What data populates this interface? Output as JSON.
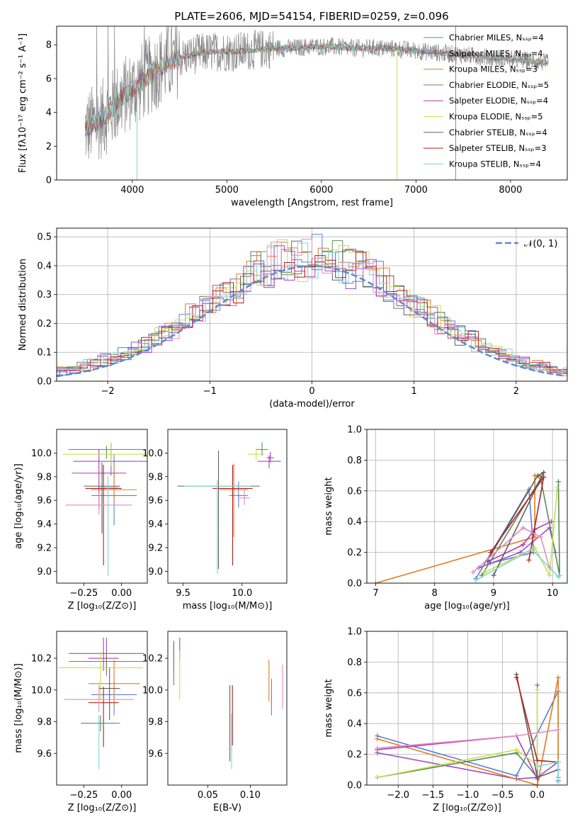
{
  "title": "PLATE=2606, MJD=54154, FIBERID=0259, z=0.096",
  "colors": [
    "#5b7fd4",
    "#9b4fc0",
    "#e07b22",
    "#5a8a5a",
    "#b03ab0",
    "#c7e04a",
    "#606060",
    "#b02020",
    "#7fd6d6",
    "#e68ac4",
    "#888888"
  ],
  "chart_data": [
    {
      "id": "spectrum",
      "type": "line",
      "xlabel": "wavelength [Angstrom, rest frame]",
      "ylabel": "Flux [fλ10⁻¹⁷ erg cm⁻² s⁻¹ A⁻¹]",
      "xlim": [
        3200,
        8600
      ],
      "ylim": [
        0,
        9.1
      ],
      "xticks": [
        4000,
        5000,
        6000,
        7000,
        8000
      ],
      "yticks": [
        0,
        2,
        4,
        6,
        8
      ],
      "grid": false,
      "legend_position": "right",
      "legend": [
        "Chabrier MILES, Nₛₛₚ=4",
        "Salpeter MILES, Nₛₛₚ=4",
        "Kroupa MILES, Nₛₛₚ=3",
        "Chabrier ELODIE, Nₛₛₚ=5",
        "Salpeter ELODIE, Nₛₛₚ=4",
        "Kroupa ELODIE, Nₛₛₚ=5",
        "Chabrier STELIB, Nₛₛₚ=4",
        "Salpeter STELIB, Nₛₛₚ=3",
        "Kroupa STELIB, Nₛₛₚ=4"
      ],
      "continuum_x": [
        3500,
        3700,
        3900,
        4100,
        4300,
        4500,
        4700,
        4900,
        5100,
        5300,
        5500,
        5700,
        5900,
        6100,
        6300,
        6500,
        6700,
        6900,
        7100,
        7300,
        7500,
        7700,
        7900,
        8100,
        8300,
        8400
      ],
      "continuum_y": [
        3.0,
        3.7,
        4.9,
        5.8,
        6.7,
        7.2,
        7.5,
        7.6,
        7.6,
        7.7,
        7.8,
        7.8,
        7.9,
        7.9,
        7.8,
        7.8,
        7.8,
        7.7,
        7.6,
        7.5,
        7.4,
        7.3,
        7.2,
        7.1,
        7.0,
        6.9
      ]
    },
    {
      "id": "residuals",
      "type": "line",
      "xlabel": "(data-model)/error",
      "ylabel": "Normed distribution",
      "xlim": [
        -2.5,
        2.5
      ],
      "ylim": [
        0,
        0.53
      ],
      "xticks": [
        -2,
        -1,
        0,
        1,
        2
      ],
      "xtick_labels": [
        "−2",
        "−1",
        "0",
        "1",
        "2"
      ],
      "yticks": [
        0.0,
        0.1,
        0.2,
        0.3,
        0.4,
        0.5
      ],
      "ytick_labels": [
        "0.0",
        "0.1",
        "0.2",
        "0.3",
        "0.4",
        "0.5"
      ],
      "grid": true,
      "legend_position": "top-right",
      "legend": [
        "𝒩(0, 1)"
      ],
      "gaussian": {
        "mean": 0,
        "sigma": 1
      }
    },
    {
      "id": "age-vs-Z",
      "type": "scatter",
      "xlabel": "Z [log₁₀(Z/Z⊙)]",
      "ylabel": "age  [log₁₀(age/yr)]",
      "xlim": [
        -0.43,
        0.17
      ],
      "ylim": [
        8.9,
        10.2
      ],
      "xticks": [
        -0.25,
        0.0
      ],
      "xtick_labels": [
        "−0.25",
        "0.00"
      ],
      "yticks": [
        9.0,
        9.2,
        9.4,
        9.6,
        9.8,
        10.0
      ],
      "ytick_labels": [
        "9.0",
        "9.2",
        "9.4",
        "9.6",
        "9.8",
        "10.0"
      ],
      "points": [
        {
          "x": -0.05,
          "y": 9.64,
          "xerr": 0.15,
          "yerr": [
            0.25,
            0.35
          ],
          "c": 0
        },
        {
          "x": -0.07,
          "y": 9.93,
          "xerr": 0.25,
          "yerr": [
            0.12,
            0.15
          ],
          "c": 1
        },
        {
          "x": -0.05,
          "y": 9.69,
          "xerr": 0.15,
          "yerr": [
            0.1,
            0.2
          ],
          "c": 2
        },
        {
          "x": -0.1,
          "y": 10.03,
          "xerr": 0.25,
          "yerr": [
            0.08,
            0.03
          ],
          "c": 3
        },
        {
          "x": -0.15,
          "y": 9.83,
          "xerr": 0.18,
          "yerr": [
            0.3,
            0.2
          ],
          "c": 4
        },
        {
          "x": -0.07,
          "y": 9.99,
          "xerr": 0.32,
          "yerr": [
            0.1,
            0.1
          ],
          "c": 5
        },
        {
          "x": -0.13,
          "y": 9.72,
          "xerr": 0.12,
          "yerr": [
            0.4,
            0.2
          ],
          "c": 6
        },
        {
          "x": -0.12,
          "y": 9.7,
          "xerr": 0.12,
          "yerr": [
            0.65,
            0.2
          ],
          "c": 7
        },
        {
          "x": -0.09,
          "y": 9.71,
          "xerr": 0.07,
          "yerr": [
            0.75,
            0.1
          ],
          "c": 8
        },
        {
          "x": -0.15,
          "y": 9.56,
          "xerr": 0.22,
          "yerr": [
            0.08,
            0.1
          ],
          "c": 9
        }
      ]
    },
    {
      "id": "age-vs-mass",
      "type": "scatter",
      "xlabel": "mass [log₁₀(M/M⊙)]",
      "xlim": [
        9.37,
        10.38
      ],
      "ylim": [
        8.9,
        10.2
      ],
      "xticks": [
        9.5,
        10.0
      ],
      "xtick_labels": [
        "9.5",
        "10.0"
      ],
      "yticks": [
        9.0,
        9.2,
        9.4,
        9.6,
        9.8,
        10.0
      ],
      "ytick_labels": [
        "9.0",
        "9.2",
        "9.4",
        "9.6",
        "9.8",
        "10.0"
      ],
      "points": [
        {
          "x": 9.97,
          "y": 9.64,
          "xerr": 0.08,
          "yerr": [
            0.1,
            0.12
          ],
          "c": 0
        },
        {
          "x": 10.23,
          "y": 9.93,
          "xerr": 0.1,
          "yerr": [
            0.06,
            0.05
          ],
          "c": 1
        },
        {
          "x": 9.93,
          "y": 9.69,
          "xerr": 0.12,
          "yerr": [
            0.4,
            0.22
          ],
          "c": 2
        },
        {
          "x": 10.17,
          "y": 10.03,
          "xerr": 0.05,
          "yerr": [
            0.05,
            0.06
          ],
          "c": 3
        },
        {
          "x": 10.24,
          "y": 9.96,
          "xerr": 0.03,
          "yerr": [
            0.04,
            0.05
          ],
          "c": 4
        },
        {
          "x": 10.12,
          "y": 9.99,
          "xerr": 0.07,
          "yerr": [
            0.05,
            0.05
          ],
          "c": 5
        },
        {
          "x": 9.8,
          "y": 9.72,
          "xerr": 0.35,
          "yerr": [
            0.7,
            0.3
          ],
          "c": 6
        },
        {
          "x": 9.92,
          "y": 9.7,
          "xerr": 0.17,
          "yerr": [
            0.65,
            0.2
          ],
          "c": 7
        },
        {
          "x": 9.79,
          "y": 9.72,
          "xerr": 0.28,
          "yerr": [
            0.74,
            0.05
          ],
          "c": 8
        },
        {
          "x": 10.02,
          "y": 9.62,
          "xerr": 0.05,
          "yerr": [
            0.06,
            0.07
          ],
          "c": 9
        }
      ]
    },
    {
      "id": "weight-vs-age",
      "type": "line",
      "xlabel": "age  [log₁₀(age/yr)]",
      "ylabel": "mass weight",
      "xlim": [
        6.85,
        10.25
      ],
      "ylim": [
        0,
        1.0
      ],
      "xticks": [
        7,
        8,
        9,
        10
      ],
      "yticks": [
        0.0,
        0.2,
        0.4,
        0.6,
        0.8,
        1.0
      ],
      "ytick_labels": [
        "0.0",
        "0.2",
        "0.4",
        "0.6",
        "0.8",
        "1.0"
      ],
      "grid": true,
      "series": [
        {
          "c": 0,
          "x": [
            8.7,
            9.6,
            9.68,
            8.95
          ],
          "y": [
            0.03,
            0.61,
            0.2,
            0.13
          ]
        },
        {
          "c": 1,
          "x": [
            8.75,
            9.45,
            9.95,
            10.05
          ],
          "y": [
            0.1,
            0.2,
            0.36,
            0.2
          ]
        },
        {
          "c": 2,
          "x": [
            7.0,
            9.7,
            9.7,
            9.8
          ],
          "y": [
            0.0,
            0.3,
            0.7,
            0.69
          ]
        },
        {
          "c": 3,
          "x": [
            8.8,
            9.8,
            10.12,
            10.1
          ],
          "y": [
            0.05,
            0.68,
            0.05,
            0.66
          ]
        },
        {
          "c": 4,
          "x": [
            8.9,
            9.5,
            9.7,
            9.98
          ],
          "y": [
            0.14,
            0.25,
            0.35,
            0.4
          ]
        },
        {
          "c": 5,
          "x": [
            8.85,
            9.7,
            9.95,
            10.08
          ],
          "y": [
            0.07,
            0.23,
            0.05,
            0.62
          ]
        },
        {
          "c": 6,
          "x": [
            9.0,
            9.85,
            9.75,
            8.9
          ],
          "y": [
            0.05,
            0.72,
            0.7,
            0.15
          ]
        },
        {
          "c": 7,
          "x": [
            8.95,
            9.85,
            9.6
          ],
          "y": [
            0.2,
            0.69,
            0.15
          ]
        },
        {
          "c": 8,
          "x": [
            8.7,
            9.65,
            10.1,
            10.12
          ],
          "y": [
            0.02,
            0.22,
            0.04,
            0.05
          ]
        },
        {
          "c": 9,
          "x": [
            8.65,
            9.5,
            9.8,
            9.95
          ],
          "y": [
            0.07,
            0.36,
            0.3,
            0.1
          ]
        }
      ]
    },
    {
      "id": "mass-vs-Z",
      "type": "scatter",
      "xlabel": "Z [log₁₀(Z/Z⊙)]",
      "ylabel": "mass [log₁₀(M/M⊙)]",
      "xlim": [
        -0.43,
        0.17
      ],
      "ylim": [
        9.4,
        10.37
      ],
      "xticks": [
        -0.25,
        0.0
      ],
      "xtick_labels": [
        "−0.25",
        "0.00"
      ],
      "yticks": [
        9.6,
        9.8,
        10.0,
        10.2
      ],
      "ytick_labels": [
        "9.6",
        "9.8",
        "10.0",
        "10.2"
      ],
      "points": [
        {
          "x": -0.05,
          "y": 9.97,
          "xerr": 0.15,
          "yerr": [
            0.13,
            0.1
          ],
          "c": 0
        },
        {
          "x": -0.1,
          "y": 10.23,
          "xerr": 0.25,
          "yerr": [
            0.14,
            0.1
          ],
          "c": 1
        },
        {
          "x": -0.05,
          "y": 10.04,
          "xerr": 0.17,
          "yerr": [
            0.15,
            0.15
          ],
          "c": 2
        },
        {
          "x": -0.1,
          "y": 10.18,
          "xerr": 0.25,
          "yerr": [
            0.06,
            0.06
          ],
          "c": 3
        },
        {
          "x": -0.12,
          "y": 10.2,
          "xerr": 0.1,
          "yerr": [
            0.08,
            0.13
          ],
          "c": 4
        },
        {
          "x": -0.14,
          "y": 10.14,
          "xerr": 0.28,
          "yerr": [
            0.2,
            0.1
          ],
          "c": 5
        },
        {
          "x": -0.08,
          "y": 10.01,
          "xerr": 0.07,
          "yerr": [
            0.2,
            0.13
          ],
          "c": 6
        },
        {
          "x": -0.12,
          "y": 9.92,
          "xerr": 0.1,
          "yerr": [
            0.28,
            0.1
          ],
          "c": 7
        },
        {
          "x": -0.15,
          "y": 9.79,
          "xerr": 0.12,
          "yerr": [
            0.29,
            0.05
          ],
          "c": 8
        },
        {
          "x": -0.15,
          "y": 9.94,
          "xerr": 0.23,
          "yerr": [
            0.08,
            0.09
          ],
          "c": 9
        },
        {
          "x": -0.14,
          "y": 9.79,
          "xerr": 0.13,
          "yerr": [
            0.05,
            0.05
          ],
          "c": 3
        }
      ]
    },
    {
      "id": "mass-vs-EBV",
      "type": "scatter",
      "xlabel": "E(B-V)",
      "xlim": [
        0.003,
        0.143
      ],
      "ylim": [
        9.4,
        10.37
      ],
      "xticks": [
        0.05,
        0.1
      ],
      "xtick_labels": [
        "0.05",
        "0.10"
      ],
      "yticks": [
        9.6,
        9.8,
        10.0,
        10.2
      ],
      "ytick_labels": [
        "9.6",
        "9.8",
        "10.0",
        "10.2"
      ],
      "points": [
        {
          "x": 0.125,
          "y": 9.97,
          "xerr": 0,
          "yerr": [
            0.13,
            0.1
          ],
          "c": 0
        },
        {
          "x": 0.01,
          "y": 10.23,
          "xerr": 0,
          "yerr": [
            0.1,
            0.08
          ],
          "c": 1
        },
        {
          "x": 0.122,
          "y": 10.05,
          "xerr": 0,
          "yerr": [
            0.12,
            0.14
          ],
          "c": 2
        },
        {
          "x": 0.01,
          "y": 10.15,
          "xerr": 0,
          "yerr": [
            0.12,
            0.15
          ],
          "c": 3
        },
        {
          "x": 0.017,
          "y": 10.25,
          "xerr": 0,
          "yerr": [
            0.06,
            0.08
          ],
          "c": 4
        },
        {
          "x": 0.017,
          "y": 10.1,
          "xerr": 0,
          "yerr": [
            0.16,
            0.15
          ],
          "c": 5
        },
        {
          "x": 0.076,
          "y": 9.85,
          "xerr": 0,
          "yerr": [
            0.3,
            0.18
          ],
          "c": 6
        },
        {
          "x": 0.079,
          "y": 9.85,
          "xerr": 0,
          "yerr": [
            0.2,
            0.18
          ],
          "c": 7
        },
        {
          "x": 0.078,
          "y": 9.7,
          "xerr": 0,
          "yerr": [
            0.2,
            0.15
          ],
          "c": 8
        },
        {
          "x": 0.138,
          "y": 10.02,
          "xerr": 0,
          "yerr": [
            0.14,
            0.14
          ],
          "c": 9
        }
      ]
    },
    {
      "id": "weight-vs-Z",
      "type": "line",
      "xlabel": "Z [log₁₀(Z/Z⊙)]",
      "ylabel": "mass weight",
      "xlim": [
        -2.45,
        0.43
      ],
      "ylim": [
        0,
        1.0
      ],
      "xticks": [
        -2.0,
        -1.5,
        -1.0,
        -0.5,
        0.0
      ],
      "xtick_labels": [
        "−2.0",
        "−1.5",
        "−1.0",
        "−0.5",
        "0.0"
      ],
      "yticks": [
        0.0,
        0.2,
        0.4,
        0.6,
        0.8,
        1.0
      ],
      "ytick_labels": [
        "0.0",
        "0.2",
        "0.4",
        "0.6",
        "0.8",
        "1.0"
      ],
      "grid": true,
      "series": [
        {
          "c": 0,
          "x": [
            -2.3,
            -0.3,
            0.3,
            0.3
          ],
          "y": [
            0.32,
            0.06,
            0.61,
            0.03
          ]
        },
        {
          "c": 1,
          "x": [
            -2.3,
            -0.3,
            0.0,
            0.3
          ],
          "y": [
            0.21,
            0.04,
            0.05,
            0.15
          ]
        },
        {
          "c": 2,
          "x": [
            -2.3,
            0.0,
            0.3,
            0.3
          ],
          "y": [
            0.3,
            0.0,
            0.7,
            0.05
          ]
        },
        {
          "c": 3,
          "x": [
            -2.3,
            -0.3,
            0.0,
            0.0
          ],
          "y": [
            0.05,
            0.21,
            0.05,
            0.65
          ]
        },
        {
          "c": 4,
          "x": [
            -2.3,
            -0.3,
            0.0
          ],
          "y": [
            0.23,
            0.32,
            0.04
          ]
        },
        {
          "c": 5,
          "x": [
            -2.3,
            -0.3,
            0.0,
            0.0
          ],
          "y": [
            0.05,
            0.23,
            0.13,
            0.62
          ]
        },
        {
          "c": 6,
          "x": [
            -0.3,
            0.0,
            0.3
          ],
          "y": [
            0.72,
            0.05,
            0.1
          ]
        },
        {
          "c": 7,
          "x": [
            -0.3,
            0.0,
            0.3
          ],
          "y": [
            0.7,
            0.16,
            0.15
          ]
        },
        {
          "c": 8,
          "x": [
            0.0,
            0.3,
            0.3
          ],
          "y": [
            0.12,
            0.15,
            0.02
          ]
        },
        {
          "c": 9,
          "x": [
            -2.3,
            -0.3,
            0.3
          ],
          "y": [
            0.24,
            0.32,
            0.36
          ]
        }
      ]
    }
  ]
}
